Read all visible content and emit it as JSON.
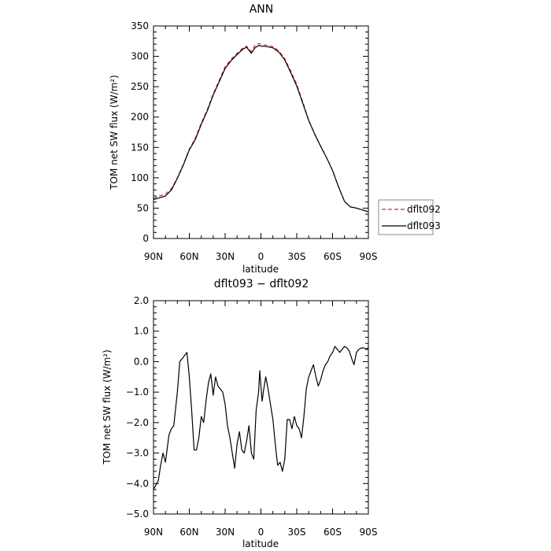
{
  "chart_data": [
    {
      "type": "line",
      "title": "ANN",
      "xlabel": "latitude",
      "ylabel": "TOM net SW flux (W/m²)",
      "xlim": [
        90,
        -90
      ],
      "ylim": [
        0,
        350
      ],
      "x_tick_values": [
        90,
        60,
        30,
        0,
        -30,
        -60,
        -90
      ],
      "x_tick_labels": [
        "90N",
        "60N",
        "30N",
        "0",
        "30S",
        "60S",
        "90S"
      ],
      "y_tick_values": [
        0,
        50,
        100,
        150,
        200,
        250,
        300,
        350
      ],
      "y_tick_labels": [
        "0",
        "50",
        "100",
        "150",
        "200",
        "250",
        "300",
        "350"
      ],
      "legend_position": "right-outside",
      "series": [
        {
          "name": "dflt092",
          "color": "#d62728",
          "dash": "dashed",
          "x": [
            90,
            85,
            80,
            75,
            70,
            65,
            60,
            55,
            50,
            45,
            40,
            35,
            30,
            25,
            20,
            15,
            12,
            10,
            8,
            5,
            2,
            0,
            -5,
            -10,
            -15,
            -20,
            -25,
            -30,
            -35,
            -40,
            -45,
            -50,
            -55,
            -60,
            -65,
            -70,
            -75,
            -80,
            -85,
            -90
          ],
          "y": [
            66,
            70,
            73,
            82,
            100,
            122,
            147,
            165,
            190,
            212,
            238,
            260,
            283,
            295,
            305,
            314,
            317,
            311,
            308,
            318,
            321,
            320,
            318,
            316,
            309,
            296,
            276,
            254,
            225,
            195,
            172,
            152,
            133,
            112,
            85,
            61,
            52,
            50,
            47,
            44
          ]
        },
        {
          "name": "dflt093",
          "color": "#000000",
          "dash": "solid",
          "x": [
            90,
            85,
            80,
            75,
            70,
            65,
            60,
            55,
            50,
            45,
            40,
            35,
            30,
            25,
            20,
            15,
            12,
            10,
            8,
            5,
            2,
            0,
            -5,
            -10,
            -15,
            -20,
            -25,
            -30,
            -35,
            -40,
            -45,
            -50,
            -55,
            -60,
            -65,
            -70,
            -75,
            -80,
            -85,
            -90
          ],
          "y": [
            64,
            67,
            70,
            80,
            99,
            121,
            146,
            163,
            188,
            210,
            236,
            258,
            280,
            293,
            303,
            312,
            315,
            310,
            305,
            314,
            318,
            317,
            316,
            314,
            307,
            294,
            273,
            251,
            223,
            194,
            172,
            152,
            133,
            112,
            85,
            61,
            52,
            50,
            47,
            44
          ]
        }
      ]
    },
    {
      "type": "line",
      "title": "dflt093 − dflt092",
      "xlabel": "latitude",
      "ylabel": "TOM net SW flux (W/m²)",
      "xlim": [
        90,
        -90
      ],
      "ylim": [
        -5.0,
        2.0
      ],
      "x_tick_values": [
        90,
        60,
        30,
        0,
        -30,
        -60,
        -90
      ],
      "x_tick_labels": [
        "90N",
        "60N",
        "30N",
        "0",
        "30S",
        "60S",
        "90S"
      ],
      "y_tick_values": [
        -5,
        -4,
        -3,
        -2,
        -1,
        0,
        1,
        2
      ],
      "y_tick_labels": [
        "−5.0",
        "−4.0",
        "−3.0",
        "−2.0",
        "−1.0",
        "0.0",
        "1.0",
        "2.0"
      ],
      "series": [
        {
          "name": "",
          "color": "#000000",
          "dash": "solid",
          "x": [
            90,
            86,
            84,
            82,
            80,
            77,
            75,
            73,
            70,
            68,
            66,
            64,
            62,
            60,
            58,
            56,
            54,
            52,
            50,
            48,
            46,
            44,
            42,
            40,
            38,
            36,
            34,
            32,
            30,
            28,
            26,
            24,
            22,
            20,
            18,
            16,
            14,
            12,
            10,
            8,
            6,
            4,
            2,
            1,
            0,
            -1,
            -2,
            -4,
            -6,
            -8,
            -10,
            -12,
            -14,
            -16,
            -18,
            -20,
            -22,
            -24,
            -26,
            -28,
            -30,
            -32,
            -34,
            -36,
            -38,
            -40,
            -42,
            -44,
            -46,
            -48,
            -50,
            -52,
            -54,
            -56,
            -58,
            -60,
            -62,
            -64,
            -66,
            -68,
            -70,
            -72,
            -74,
            -76,
            -78,
            -80,
            -82,
            -84,
            -86,
            -88,
            -90
          ],
          "y": [
            -4.2,
            -3.9,
            -3.4,
            -3.0,
            -3.3,
            -2.4,
            -2.2,
            -2.1,
            -1.0,
            0.0,
            0.1,
            0.2,
            0.3,
            -0.5,
            -1.6,
            -2.9,
            -2.9,
            -2.5,
            -1.8,
            -2.0,
            -1.3,
            -0.7,
            -0.4,
            -1.1,
            -0.5,
            -0.8,
            -0.9,
            -1.0,
            -1.4,
            -2.1,
            -2.5,
            -3.0,
            -3.5,
            -2.7,
            -2.3,
            -2.9,
            -3.0,
            -2.6,
            -2.1,
            -3.0,
            -3.2,
            -1.6,
            -1.0,
            -0.3,
            -0.8,
            -1.3,
            -1.0,
            -0.5,
            -0.9,
            -1.4,
            -1.9,
            -2.7,
            -3.4,
            -3.3,
            -3.6,
            -3.2,
            -1.9,
            -1.9,
            -2.2,
            -1.8,
            -2.1,
            -2.2,
            -2.5,
            -1.8,
            -0.9,
            -0.5,
            -0.3,
            -0.1,
            -0.5,
            -0.8,
            -0.6,
            -0.3,
            -0.1,
            0.0,
            0.2,
            0.3,
            0.5,
            0.4,
            0.3,
            0.4,
            0.5,
            0.45,
            0.35,
            0.1,
            -0.1,
            0.3,
            0.4,
            0.45,
            0.45,
            0.42,
            0.45
          ]
        }
      ]
    }
  ]
}
